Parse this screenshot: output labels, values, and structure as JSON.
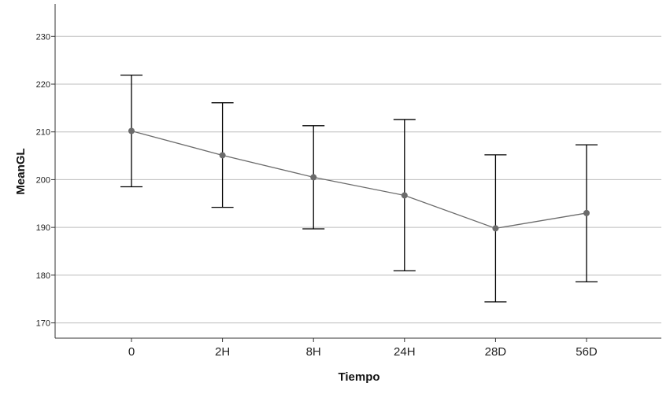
{
  "chart_data": {
    "type": "line",
    "xlabel": "Tiempo",
    "ylabel": "MeanGL",
    "categories": [
      "0",
      "2H",
      "8H",
      "24H",
      "28D",
      "56D"
    ],
    "series": [
      {
        "values": [
          210.2,
          205.1,
          200.5,
          196.7,
          189.8,
          193.0
        ],
        "error_low": [
          198.5,
          194.2,
          189.7,
          180.9,
          174.4,
          178.6
        ],
        "error_high": [
          221.9,
          216.1,
          211.3,
          212.6,
          205.2,
          207.3
        ]
      }
    ],
    "ylim": [
      166.8,
      236.8
    ],
    "yticks": [
      "170",
      "180",
      "190",
      "200",
      "210",
      "220",
      "230"
    ],
    "grid": true,
    "colors": {
      "line": "#6b6b6b",
      "marker": "#6b6b6b",
      "error_bar": "#000000",
      "grid": "#bdbdbd",
      "axis": "#333333"
    }
  }
}
